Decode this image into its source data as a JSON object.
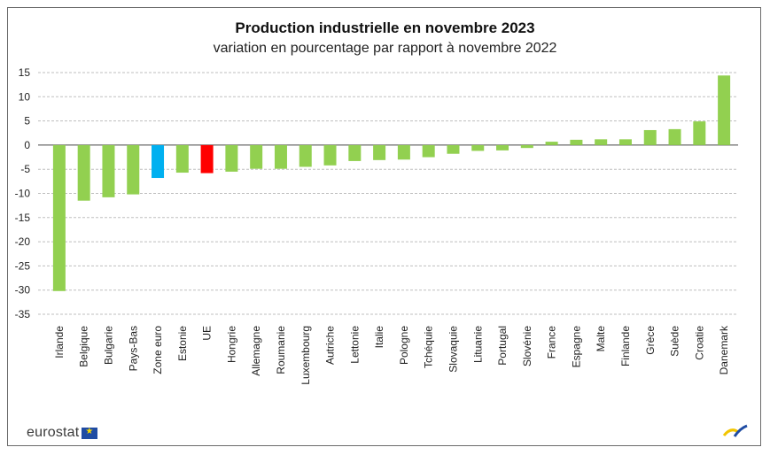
{
  "chart_data": {
    "type": "bar",
    "title": "Production industrielle  en novembre 2023",
    "subtitle": "variation en pourcentage  par rapport à novembre 2022",
    "xlabel": "",
    "ylabel": "",
    "ylim": [
      -35,
      15
    ],
    "yticks": [
      15,
      10,
      5,
      0,
      -5,
      -10,
      -15,
      -20,
      -25,
      -30,
      -35
    ],
    "grid": true,
    "categories": [
      "Irlande",
      "Belgique",
      "Bulgarie",
      "Pays-Bas",
      "Zone euro",
      "Estonie",
      "UE",
      "Hongrie",
      "Allemagne",
      "Roumanie",
      "Luxembourg",
      "Autriche",
      "Lettonie",
      "Italie",
      "Pologne",
      "Tchéquie",
      "Slovaquie",
      "Lituanie",
      "Portugal",
      "Slovénie",
      "France",
      "Espagne",
      "Malte",
      "Finlande",
      "Grèce",
      "Suède",
      "Croatie",
      "Danemark"
    ],
    "values": [
      -30.2,
      -11.5,
      -10.8,
      -10.2,
      -6.8,
      -5.7,
      -5.8,
      -5.5,
      -4.9,
      -4.9,
      -4.5,
      -4.2,
      -3.3,
      -3.1,
      -3.0,
      -2.5,
      -1.8,
      -1.2,
      -1.1,
      -0.6,
      0.7,
      1.1,
      1.2,
      1.2,
      3.1,
      3.3,
      4.9,
      14.4
    ],
    "colors": {
      "default": "#92d050",
      "Zone euro": "#00b0f0",
      "UE": "#ff0000"
    }
  },
  "footer": {
    "logo_text": "eurostat",
    "logo_icon": "eu-flag-icon",
    "corner_icon": "eurostat-swoosh-icon"
  }
}
